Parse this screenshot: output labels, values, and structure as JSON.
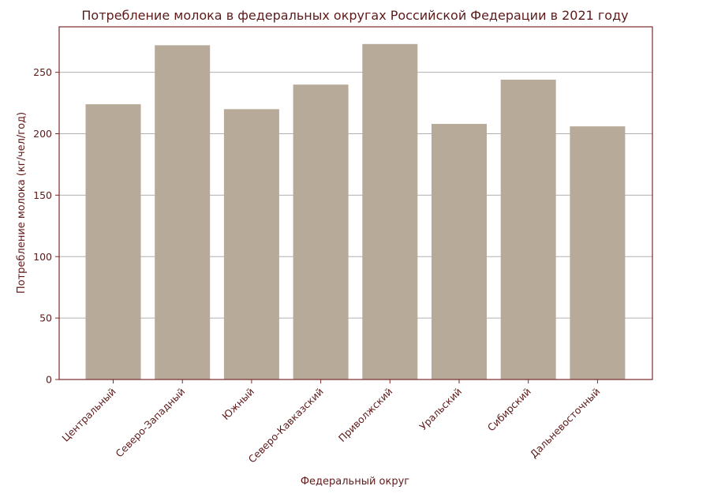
{
  "chart_data": {
    "type": "bar",
    "title": "Потребление молока в федеральных округах Российской Федерации в 2021 году",
    "xlabel": "Федеральный округ",
    "ylabel": "Потребление молока (кг/чел/год)",
    "categories": [
      "Центральный",
      "Северо-Западный",
      "Южный",
      "Северо-Кавказский",
      "Приволжский",
      "Уральский",
      "Сибирский",
      "Дальневосточный"
    ],
    "values": [
      224,
      272,
      220,
      240,
      273,
      208,
      244,
      206
    ],
    "ylim": [
      0,
      287
    ],
    "yticks": [
      0,
      50,
      100,
      150,
      200,
      250
    ],
    "grid": "horizontal",
    "legend": "none"
  },
  "colors": {
    "bar": "#b8aa98",
    "text": "#5e1a1a",
    "frame": "#7a2a2a",
    "grid": "#b0b0b0"
  }
}
